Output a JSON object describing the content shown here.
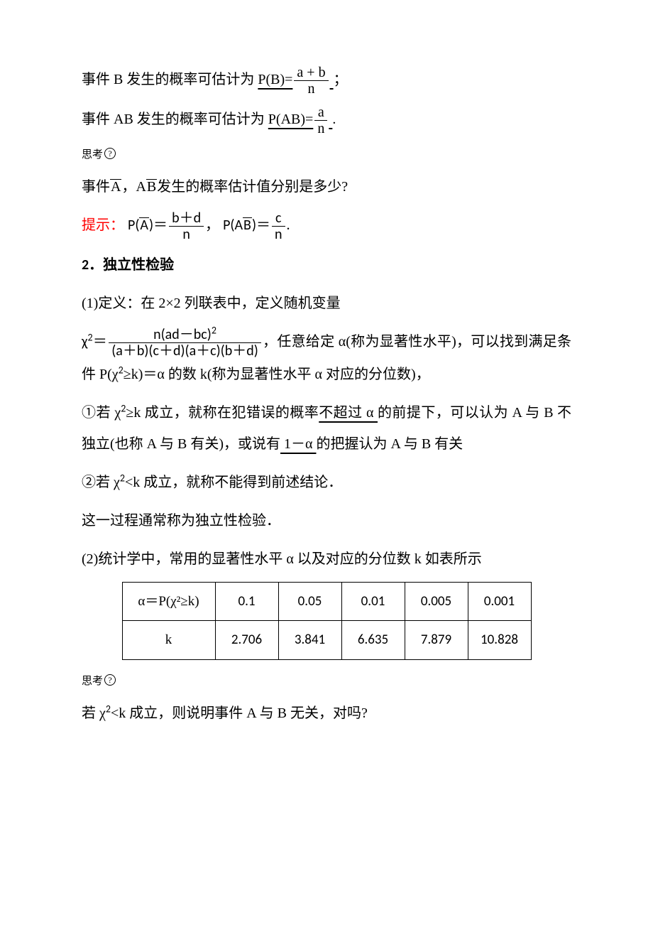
{
  "line1_prefix": "事件 B 发生的概率可估计为",
  "line1_pb_label": "P(B)=",
  "line1_num": "a + b",
  "line1_den": "n",
  "punct_semi": "；",
  "line2_prefix": "事件 AB 发生的概率可估计为",
  "line2_pab_label": "P(AB)=",
  "line2_num": "a",
  "line2_den": "n",
  "punct_period": ".",
  "sik_label": "思考",
  "q3_text": "事件",
  "q3_A": "A",
  "q3_mid": "，A",
  "q3_B": "B",
  "q3_tail": "发生的概率估计值分别是多少?",
  "tip_label": "提示：",
  "tip_pa_lhs": "P(",
  "tip_pa_bar": "A",
  "tip_pa_rhs": ")＝",
  "tip_pa_num": "b＋d",
  "tip_pa_den": "n",
  "tip_comma": "，",
  "tip_pab_lhs": "P(A",
  "tip_pab_bar": "B",
  "tip_pab_rhs": ")＝",
  "tip_pab_num": "c",
  "tip_pab_den": "n",
  "tip_period": ".",
  "h2_num": "2",
  "h2_title": "．独立性检验",
  "def_1a": "(1)定义：在 2×2 列联表中，定义随机变量",
  "chi2_lhs": "χ",
  "chi2_eq": "＝",
  "chi2_num": "n(ad－bc)",
  "chi2_den": "(a＋b)(c＋d)(a＋c)(b＋d)",
  "def_1b": "，任意给定 α(称为显著性水平)，可以找到满足条件 P(χ",
  "def_1b_mid": "≥k)＝α 的数 k(称为显著性水平 α 对应的分位数)，",
  "item1_head": "①若 χ",
  "item1_mid1": "≥k 成立，就称在犯错误的概率",
  "item1_ul1": "不超过 α ",
  "item1_mid2": "的前提下，可以认为 A 与 B 不独立(也称 A 与 B 有关)，或说有",
  "item1_ul2": " 1－α ",
  "item1_mid3": "的把握认为 A 与 B 有关",
  "item2_head": "②若 χ",
  "item2_tail": "<k 成立，就称不能得到前述结论．",
  "concl": "这一过程通常称为独立性检验．",
  "def_2": "(2)统计学中，常用的显著性水平 α 以及对应的分位数 k 如表所示",
  "table": {
    "header_alpha": "α＝P(χ²≥k)",
    "header_k": "k",
    "cols": [
      "0.1",
      "0.05",
      "0.01",
      "0.005",
      "0.001"
    ],
    "kvals": [
      "2.706",
      "3.841",
      "6.635",
      "7.879",
      "10.828"
    ]
  },
  "q_last_head": "若 χ",
  "q_last_tail": "<k 成立，则说明事件 A 与 B 无关，对吗?"
}
